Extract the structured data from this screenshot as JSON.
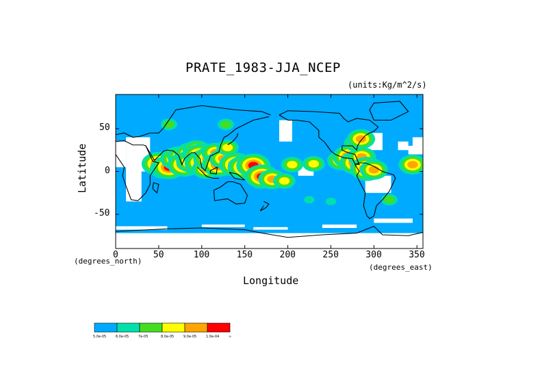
{
  "chart_data": {
    "type": "heatmap",
    "title": "PRATE_1983-JJA_NCEP",
    "units": "(units:Kg/m^2/s)",
    "xlabel": "Longitude",
    "ylabel": "Latitude",
    "x_unit_label": "(degrees_north)",
    "y_unit_label": "(degrees_east)",
    "xlim": [
      0,
      357
    ],
    "ylim": [
      -90,
      90
    ],
    "x_ticks": [
      0,
      50,
      100,
      150,
      200,
      250,
      300,
      350
    ],
    "y_ticks": [
      50,
      0,
      -50
    ],
    "grid": false,
    "legend": {
      "placement": "bottom-left",
      "colors": [
        "#00aaff",
        "#00e0aa",
        "#44dd22",
        "#ffff00",
        "#ffa500",
        "#ff0000"
      ],
      "labels": [
        "5.0e-05",
        "6.0e-05",
        "7e-05",
        "8.0e-05",
        "9.0e-05",
        "1.0e-04",
        "∞"
      ]
    },
    "background_color": "#00aaff",
    "no_data_color": "#ffffff",
    "rain_cells": [
      {
        "lon": 50,
        "lat": 9,
        "level": 5
      },
      {
        "lon": 56,
        "lat": 3,
        "level": 4
      },
      {
        "lon": 62,
        "lat": 5,
        "level": 5
      },
      {
        "lon": 72,
        "lat": 15,
        "level": 5
      },
      {
        "lon": 76,
        "lat": 18,
        "level": 4
      },
      {
        "lon": 80,
        "lat": 8,
        "level": 5
      },
      {
        "lon": 88,
        "lat": 20,
        "level": 5
      },
      {
        "lon": 90,
        "lat": 12,
        "level": 5
      },
      {
        "lon": 94,
        "lat": 25,
        "level": 4
      },
      {
        "lon": 98,
        "lat": 18,
        "level": 5
      },
      {
        "lon": 100,
        "lat": 10,
        "level": 5
      },
      {
        "lon": 105,
        "lat": 3,
        "level": 4
      },
      {
        "lon": 110,
        "lat": 15,
        "level": 5
      },
      {
        "lon": 116,
        "lat": 22,
        "level": 4
      },
      {
        "lon": 120,
        "lat": 8,
        "level": 5
      },
      {
        "lon": 125,
        "lat": 15,
        "level": 4
      },
      {
        "lon": 130,
        "lat": 28,
        "level": 3
      },
      {
        "lon": 140,
        "lat": 8,
        "level": 5
      },
      {
        "lon": 150,
        "lat": 5,
        "level": 5
      },
      {
        "lon": 160,
        "lat": 7,
        "level": 5
      },
      {
        "lon": 170,
        "lat": -6,
        "level": 5
      },
      {
        "lon": 182,
        "lat": -9,
        "level": 4
      },
      {
        "lon": 196,
        "lat": -11,
        "level": 3
      },
      {
        "lon": 205,
        "lat": 8,
        "level": 3
      },
      {
        "lon": 230,
        "lat": 9,
        "level": 3
      },
      {
        "lon": 262,
        "lat": 13,
        "level": 4
      },
      {
        "lon": 272,
        "lat": 17,
        "level": 5
      },
      {
        "lon": 280,
        "lat": 10,
        "level": 5
      },
      {
        "lon": 286,
        "lat": 17,
        "level": 4
      },
      {
        "lon": 292,
        "lat": 3,
        "level": 5
      },
      {
        "lon": 300,
        "lat": 2,
        "level": 4
      },
      {
        "lon": 278,
        "lat": 33,
        "level": 3
      },
      {
        "lon": 285,
        "lat": 38,
        "level": 4
      },
      {
        "lon": 62,
        "lat": 55,
        "level": 2
      },
      {
        "lon": 128,
        "lat": 55,
        "level": 2
      },
      {
        "lon": 318,
        "lat": -33,
        "level": 2
      },
      {
        "lon": 250,
        "lat": -35,
        "level": 1
      },
      {
        "lon": 225,
        "lat": -33,
        "level": 1
      },
      {
        "lon": 345,
        "lat": 8,
        "level": 4
      }
    ]
  }
}
